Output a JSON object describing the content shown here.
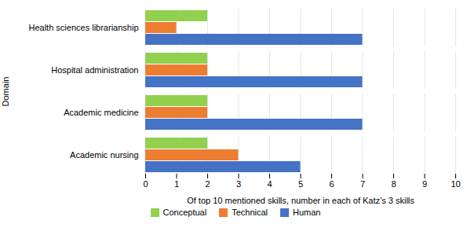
{
  "chart_data": {
    "type": "bar",
    "orientation": "horizontal",
    "categories": [
      "Academic nursing",
      "Academic medicine",
      "Hospital administration",
      "Health sciences librarianship"
    ],
    "series": [
      {
        "name": "Conceptual",
        "color": "#92d050",
        "values": [
          2,
          2,
          2,
          2
        ]
      },
      {
        "name": "Technical",
        "color": "#ed7d31",
        "values": [
          3,
          2,
          2,
          1
        ]
      },
      {
        "name": "Human",
        "color": "#4472c4",
        "values": [
          5,
          7,
          7,
          7
        ]
      }
    ],
    "xlabel": "Of top 10 mentioned skills, number in each of Katz’s 3 skills",
    "ylabel": "Domain",
    "xlim": [
      0,
      10
    ],
    "xticks": [
      0,
      1,
      2,
      3,
      4,
      5,
      6,
      7,
      8,
      9,
      10
    ],
    "grid": true,
    "legend": "bottom"
  }
}
